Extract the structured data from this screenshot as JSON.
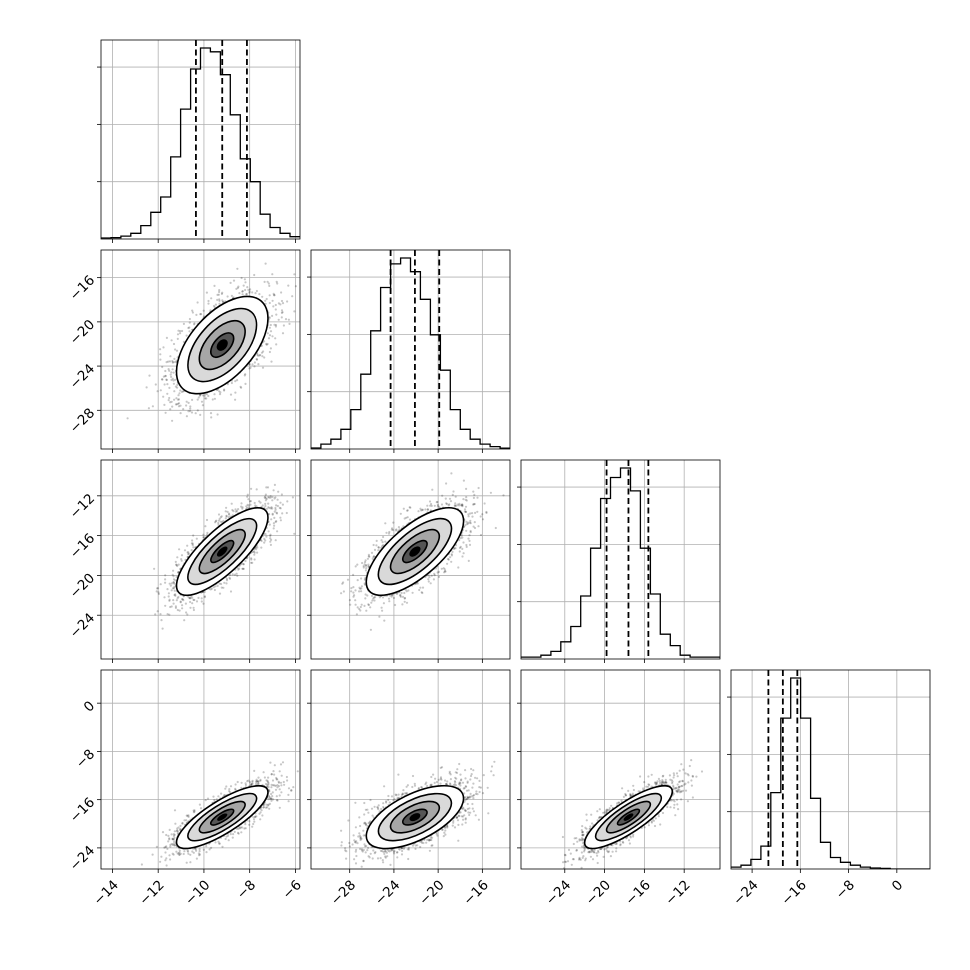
{
  "chart_data": {
    "type": "corner",
    "n_params": 4,
    "params": [
      {
        "range": [
          -14.5,
          -5.8
        ],
        "ticks": [
          -14,
          -12,
          -10,
          -8,
          -6
        ],
        "quantiles": [
          -10.35,
          -9.2,
          -8.12
        ],
        "hist": [
          0.005,
          0.007,
          0.015,
          0.03,
          0.07,
          0.14,
          0.22,
          0.43,
          0.68,
          0.89,
          1.0,
          0.98,
          0.86,
          0.65,
          0.42,
          0.3,
          0.13,
          0.06,
          0.03,
          0.012
        ],
        "mean": -9.2,
        "sd": 1.0
      },
      {
        "range": [
          -31.5,
          -13.5
        ],
        "ticks": [
          -28,
          -24,
          -20,
          -16
        ],
        "quantiles": [
          -24.3,
          -22.1,
          -19.9
        ],
        "hist": [
          0.005,
          0.025,
          0.05,
          0.1,
          0.2,
          0.38,
          0.6,
          0.82,
          0.94,
          0.97,
          0.9,
          0.76,
          0.58,
          0.4,
          0.2,
          0.1,
          0.05,
          0.025,
          0.012,
          0.004
        ],
        "mean": -22.1,
        "sd": 2.2
      },
      {
        "range": [
          -28.4,
          -8.4
        ],
        "ticks": [
          -24,
          -20,
          -16,
          -12
        ],
        "quantiles": [
          -19.8,
          -17.6,
          -15.6
        ],
        "hist": [
          0.01,
          0.01,
          0.02,
          0.04,
          0.09,
          0.17,
          0.33,
          0.58,
          0.84,
          0.95,
          1.0,
          0.88,
          0.58,
          0.34,
          0.13,
          0.07,
          0.02,
          0.01,
          0.01,
          0.01
        ],
        "mean": -17.6,
        "sd": 2.2
      },
      {
        "range": [
          -27.5,
          5.5
        ],
        "ticks": [
          -24,
          -16,
          -8,
          0
        ],
        "quantiles": [
          -21.3,
          -18.9,
          -16.5
        ],
        "hist": [
          0.01,
          0.02,
          0.05,
          0.12,
          0.4,
          0.79,
          1.0,
          0.79,
          0.37,
          0.14,
          0.06,
          0.035,
          0.02,
          0.01,
          0.005,
          0.003,
          0.0,
          0.0,
          0.0,
          0.0
        ],
        "mean": -18.9,
        "sd": 2.6
      }
    ],
    "correlations": {
      "1-0": 0.55,
      "2-0": 0.78,
      "2-1": 0.7,
      "3-0": 0.8,
      "3-1": 0.6,
      "3-2": 0.82
    },
    "samples_per_panel": 2600,
    "grid": true
  }
}
